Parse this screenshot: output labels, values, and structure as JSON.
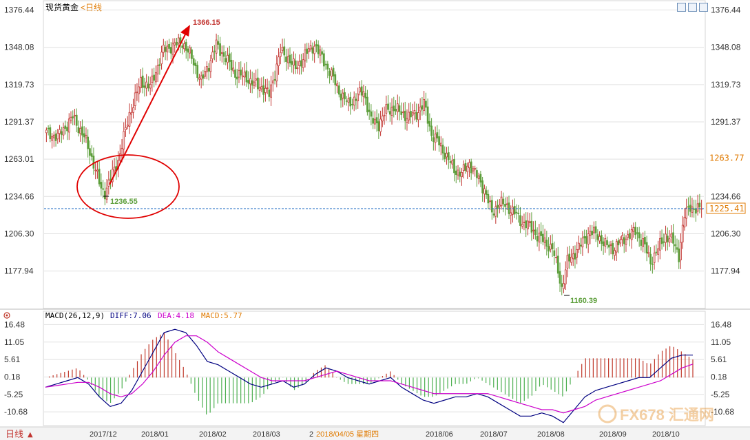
{
  "title": "现货黄金",
  "period": "<日线",
  "colors": {
    "up": "#c23531",
    "down": "#5c9e3a",
    "price_line": "#1565c0",
    "price_box": "#e07a00",
    "diff": "#000080",
    "dea": "#cc00cc",
    "hist_pos": "#c0392b",
    "hist_neg": "#4caf50",
    "arrow": "#e00000",
    "circle": "#e00000",
    "grid": "#e0e0e0"
  },
  "macd": {
    "label": "MACD(26,12,9)",
    "diff_label": "DIFF:7.06",
    "dea_label": "DEA:4.18",
    "macd_label": "MACD:5.77"
  },
  "bottom": {
    "period_button": "日线",
    "cursor_date": "2018/04/05 星期四"
  },
  "watermark": "FX678 汇通网",
  "chart_data": [
    {
      "type": "candlestick",
      "title": "现货黄金",
      "y_ticks": [
        1376.44,
        1348.08,
        1319.73,
        1291.37,
        1263.01,
        1234.66,
        1206.3,
        1177.94
      ],
      "ylim": [
        1150,
        1383
      ],
      "x_ticks": [
        "2017/12",
        "2018/01",
        "2018/02",
        "2018/03",
        "2018/04",
        "2018/06",
        "2018/07",
        "2018/08",
        "2018/09",
        "2018/10"
      ],
      "annotations": [
        {
          "text": "1366.15",
          "kind": "high"
        },
        {
          "text": "1236.55",
          "kind": "low"
        },
        {
          "text": "1160.39",
          "kind": "low"
        }
      ],
      "price_labels": {
        "secondary": "1263.77",
        "current": "1225.41"
      },
      "current_price": 1225.41,
      "anchors": [
        {
          "i": 0,
          "v": 1283
        },
        {
          "i": 6,
          "v": 1280
        },
        {
          "i": 14,
          "v": 1295
        },
        {
          "i": 20,
          "v": 1280
        },
        {
          "i": 25,
          "v": 1260
        },
        {
          "i": 29,
          "v": 1240
        },
        {
          "i": 31,
          "v": 1238
        },
        {
          "i": 38,
          "v": 1262
        },
        {
          "i": 44,
          "v": 1297
        },
        {
          "i": 50,
          "v": 1322
        },
        {
          "i": 55,
          "v": 1318
        },
        {
          "i": 62,
          "v": 1346
        },
        {
          "i": 68,
          "v": 1350
        },
        {
          "i": 72,
          "v": 1352
        },
        {
          "i": 77,
          "v": 1340
        },
        {
          "i": 82,
          "v": 1322
        },
        {
          "i": 86,
          "v": 1335
        },
        {
          "i": 90,
          "v": 1350
        },
        {
          "i": 95,
          "v": 1340
        },
        {
          "i": 100,
          "v": 1328
        },
        {
          "i": 106,
          "v": 1325
        },
        {
          "i": 110,
          "v": 1320
        },
        {
          "i": 114,
          "v": 1318
        },
        {
          "i": 118,
          "v": 1312
        },
        {
          "i": 124,
          "v": 1345
        },
        {
          "i": 128,
          "v": 1340
        },
        {
          "i": 132,
          "v": 1332
        },
        {
          "i": 138,
          "v": 1344
        },
        {
          "i": 142,
          "v": 1350
        },
        {
          "i": 146,
          "v": 1340
        },
        {
          "i": 150,
          "v": 1330
        },
        {
          "i": 156,
          "v": 1312
        },
        {
          "i": 160,
          "v": 1305
        },
        {
          "i": 164,
          "v": 1310
        },
        {
          "i": 168,
          "v": 1315
        },
        {
          "i": 172,
          "v": 1292
        },
        {
          "i": 176,
          "v": 1290
        },
        {
          "i": 180,
          "v": 1300
        },
        {
          "i": 184,
          "v": 1302
        },
        {
          "i": 188,
          "v": 1298
        },
        {
          "i": 192,
          "v": 1295
        },
        {
          "i": 196,
          "v": 1298
        },
        {
          "i": 200,
          "v": 1305
        },
        {
          "i": 204,
          "v": 1282
        },
        {
          "i": 208,
          "v": 1275
        },
        {
          "i": 212,
          "v": 1265
        },
        {
          "i": 216,
          "v": 1255
        },
        {
          "i": 220,
          "v": 1252
        },
        {
          "i": 224,
          "v": 1260
        },
        {
          "i": 228,
          "v": 1250
        },
        {
          "i": 232,
          "v": 1240
        },
        {
          "i": 236,
          "v": 1222
        },
        {
          "i": 240,
          "v": 1230
        },
        {
          "i": 244,
          "v": 1227
        },
        {
          "i": 248,
          "v": 1222
        },
        {
          "i": 252,
          "v": 1215
        },
        {
          "i": 256,
          "v": 1212
        },
        {
          "i": 260,
          "v": 1205
        },
        {
          "i": 264,
          "v": 1200
        },
        {
          "i": 268,
          "v": 1195
        },
        {
          "i": 271,
          "v": 1178
        },
        {
          "i": 273,
          "v": 1165
        },
        {
          "i": 276,
          "v": 1185
        },
        {
          "i": 280,
          "v": 1192
        },
        {
          "i": 284,
          "v": 1200
        },
        {
          "i": 288,
          "v": 1208
        },
        {
          "i": 292,
          "v": 1205
        },
        {
          "i": 296,
          "v": 1198
        },
        {
          "i": 300,
          "v": 1195
        },
        {
          "i": 304,
          "v": 1200
        },
        {
          "i": 308,
          "v": 1205
        },
        {
          "i": 312,
          "v": 1208
        },
        {
          "i": 316,
          "v": 1200
        },
        {
          "i": 320,
          "v": 1185
        },
        {
          "i": 324,
          "v": 1195
        },
        {
          "i": 328,
          "v": 1205
        },
        {
          "i": 332,
          "v": 1200
        },
        {
          "i": 335,
          "v": 1190
        },
        {
          "i": 338,
          "v": 1220
        },
        {
          "i": 341,
          "v": 1228
        },
        {
          "i": 344,
          "v": 1224
        },
        {
          "i": 347,
          "v": 1225.41
        }
      ]
    },
    {
      "type": "line",
      "title": "MACD(26,12,9)",
      "y_ticks": [
        16.48,
        11.05,
        5.61,
        0.18,
        -5.25,
        -10.68
      ],
      "ylim": [
        -14.5,
        18.5
      ],
      "series": [
        {
          "name": "DIFF",
          "values": [
            -3,
            -2,
            -1,
            0,
            -2,
            -6,
            -9,
            -8,
            -4,
            2,
            8,
            14,
            15,
            14,
            10,
            5,
            4,
            2,
            0,
            -2,
            -3,
            -2,
            -1,
            -3,
            -2,
            1,
            3,
            2,
            0,
            -1,
            -2,
            -1,
            0,
            -3,
            -5,
            -7,
            -8,
            -7,
            -6,
            -6,
            -5,
            -6,
            -8,
            -10,
            -12,
            -12,
            -11,
            -12,
            -14,
            -10,
            -6,
            -4,
            -3,
            -2,
            -1,
            0,
            0,
            3,
            6,
            7,
            7
          ]
        },
        {
          "name": "DEA",
          "values": [
            -3,
            -2.5,
            -2,
            -1.5,
            -1.5,
            -3,
            -5,
            -6,
            -5,
            -2,
            2,
            7,
            11,
            13,
            13,
            11,
            8,
            6,
            4,
            2,
            0,
            -1,
            -1,
            -1,
            -1,
            0,
            1,
            2,
            1,
            0,
            -1,
            -1,
            -1,
            -2,
            -3,
            -4,
            -5,
            -5,
            -5,
            -5,
            -5,
            -5,
            -6,
            -7,
            -8,
            -9,
            -10,
            -10,
            -11,
            -10,
            -9,
            -7,
            -6,
            -5,
            -4,
            -3,
            -2,
            -1,
            1,
            3,
            4.18
          ]
        }
      ]
    }
  ]
}
